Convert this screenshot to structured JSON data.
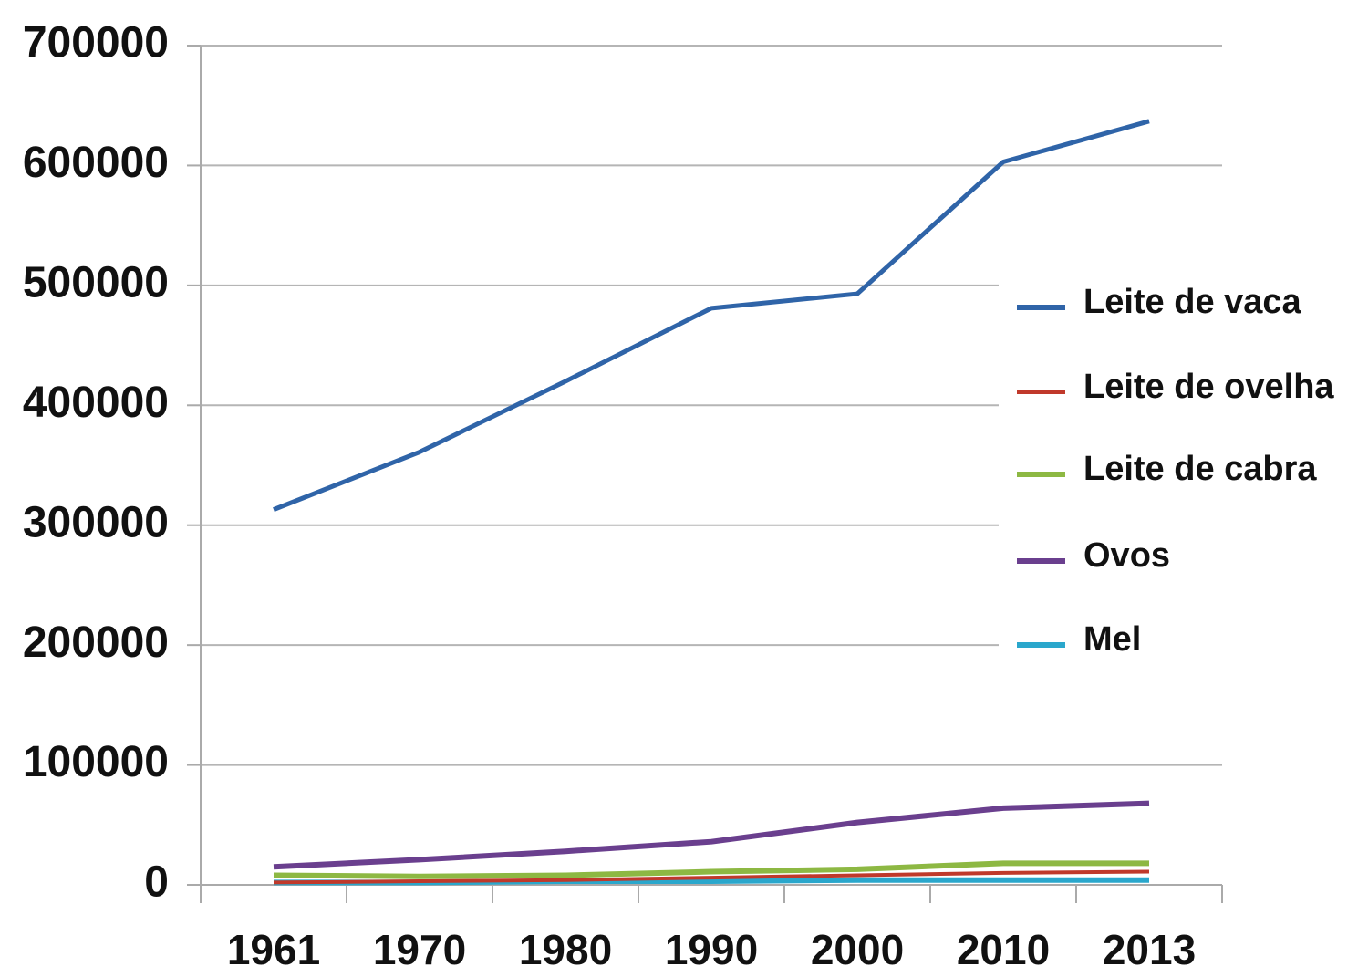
{
  "chart_data": {
    "type": "line",
    "categories": [
      "1961",
      "1970",
      "1980",
      "1990",
      "2000",
      "2010",
      "2013"
    ],
    "series": [
      {
        "name": "Leite de vaca",
        "color": "#2f64a8",
        "values": [
          313000,
          361000,
          420000,
          481000,
          493000,
          603000,
          637000
        ]
      },
      {
        "name": "Leite de ovelha",
        "color": "#c0392b",
        "values": [
          2000,
          3000,
          4000,
          6000,
          8000,
          10000,
          11000
        ]
      },
      {
        "name": "Leite de cabra",
        "color": "#8db843",
        "values": [
          8000,
          7000,
          8000,
          11000,
          13000,
          18000,
          18000
        ]
      },
      {
        "name": "Ovos",
        "color": "#6a3f8e",
        "values": [
          15000,
          21000,
          28000,
          36000,
          52000,
          64000,
          68000
        ]
      },
      {
        "name": "Mel",
        "color": "#2aa7cc",
        "values": [
          2000,
          2000,
          3000,
          3000,
          4000,
          4000,
          4000
        ]
      }
    ],
    "ylim": [
      0,
      700000
    ],
    "yticks": [
      0,
      100000,
      200000,
      300000,
      400000,
      500000,
      600000,
      700000
    ],
    "grid": true
  }
}
